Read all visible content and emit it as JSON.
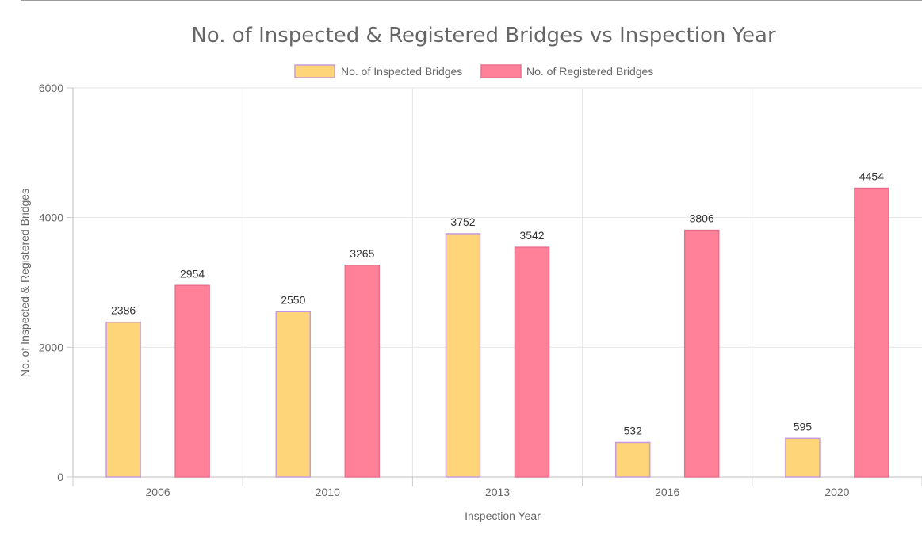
{
  "chart_data": {
    "type": "bar",
    "title": "No. of Inspected & Registered Bridges vs Inspection Year",
    "xlabel": "Inspection Year",
    "ylabel": "No. of Inspected & Registered Bridges",
    "categories": [
      "2006",
      "2010",
      "2013",
      "2016",
      "2020"
    ],
    "series": [
      {
        "name": "No. of Inspected Bridges",
        "values": [
          2386,
          2550,
          3752,
          532,
          595
        ],
        "fill": "#ffd57a",
        "stroke": "#c59bd8"
      },
      {
        "name": "No. of Registered Bridges",
        "values": [
          2954,
          3265,
          3542,
          3806,
          4454
        ],
        "fill": "#ff8099",
        "stroke": "#e8708c"
      }
    ],
    "ylim": [
      0,
      6000
    ],
    "yticks": [
      "0",
      "2000",
      "4000",
      "6000"
    ],
    "grid": true,
    "legend_position": "top"
  }
}
